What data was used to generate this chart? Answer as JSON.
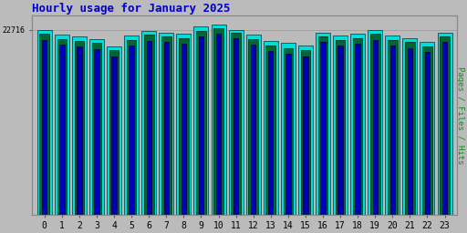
{
  "title": "Hourly usage for January 2025",
  "title_color": "#0000cc",
  "title_fontsize": 9,
  "ylabel_right": "Pages / Files / Hits",
  "hours": [
    0,
    1,
    2,
    3,
    4,
    5,
    6,
    7,
    8,
    9,
    10,
    11,
    12,
    13,
    14,
    15,
    16,
    17,
    18,
    19,
    20,
    21,
    22,
    23
  ],
  "pages": [
    22200,
    21600,
    21400,
    21100,
    20200,
    21500,
    22100,
    21900,
    21700,
    22600,
    22900,
    22400,
    21600,
    20800,
    20500,
    20200,
    21900,
    21500,
    21700,
    22200,
    21500,
    21200,
    20700,
    21900
  ],
  "files": [
    21500,
    20900,
    20700,
    20400,
    19500,
    20800,
    21400,
    21200,
    21000,
    21900,
    22200,
    21700,
    20900,
    20100,
    19800,
    19500,
    21200,
    20800,
    21000,
    21500,
    20800,
    20500,
    20000,
    21200
  ],
  "hits": [
    22716,
    22100,
    21900,
    21600,
    20700,
    22000,
    22600,
    22400,
    22200,
    23100,
    23400,
    22716,
    22100,
    21400,
    21100,
    20800,
    22400,
    22000,
    22200,
    22700,
    22000,
    21700,
    21300,
    22400
  ],
  "bar_width": 0.28,
  "colors": {
    "pages": "#006633",
    "files": "#0000bb",
    "hits": "#00dddd"
  },
  "bg_color": "#bbbbbb",
  "plot_bg": "#bbbbbb",
  "ytick_label": "22716",
  "ylim_min": 0,
  "ylim_max": 24500,
  "font_family": "monospace"
}
